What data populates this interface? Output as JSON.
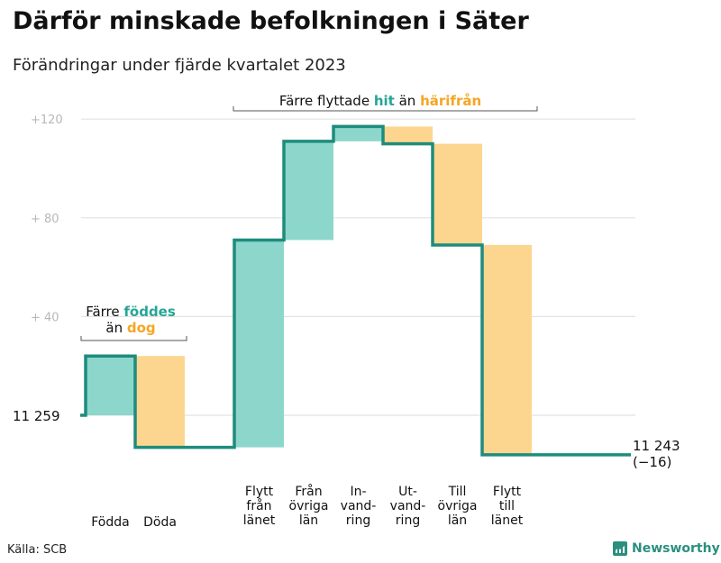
{
  "header": {
    "title": "Därför minskade befolkningen i Säter",
    "subtitle": "Förändringar under fjärde kvartalet 2023"
  },
  "footer": {
    "source": "Källa: SCB",
    "brand": "Newsworthy",
    "brand_icon": "bar-chart-icon"
  },
  "colors": {
    "increase": "#8dd6cc",
    "decrease": "#fcd68f",
    "line": "#1e8c7c",
    "grid": "#e2e2e2",
    "highlight_teal": "#26a596",
    "highlight_orange": "#f5a623"
  },
  "chart_data": {
    "type": "waterfall",
    "title": "Därför minskade befolkningen i Säter",
    "subtitle": "Förändringar under fjärde kvartalet 2023",
    "start_label": "11  259",
    "end_label": "11 243",
    "end_change_label": "(−16)",
    "y_tick_labels": [
      "+120",
      "+  80",
      "+  40"
    ],
    "y_ticks": [
      120,
      80,
      40
    ],
    "ylim": [
      -20,
      125
    ],
    "categories": [
      {
        "label": [
          "Födda"
        ],
        "delta": 24
      },
      {
        "label": [
          "Döda"
        ],
        "delta": -37
      },
      {
        "label": [],
        "delta": 0
      },
      {
        "label": [
          "Flytt",
          "från",
          "länet"
        ],
        "delta": 84
      },
      {
        "label": [
          "Från",
          "övriga",
          "län"
        ],
        "delta": 40
      },
      {
        "label": [
          "In-",
          "vand-",
          "ring"
        ],
        "delta": 6
      },
      {
        "label": [
          "Ut-",
          "vand-",
          "ring"
        ],
        "delta": -7
      },
      {
        "label": [
          "Till",
          "övriga",
          "län"
        ],
        "delta": -41
      },
      {
        "label": [
          "Flytt",
          "till",
          "länet"
        ],
        "delta": -85
      },
      {
        "label": [],
        "delta": 0
      },
      {
        "label": [],
        "delta": 0
      }
    ],
    "annotations": [
      {
        "id": "births",
        "line1": [
          "Färre ",
          "föddes"
        ],
        "line2": [
          "än ",
          "dog"
        ]
      },
      {
        "id": "migration",
        "parts": [
          "Färre flyttade ",
          "hit",
          " än ",
          "härifrån"
        ]
      }
    ]
  }
}
